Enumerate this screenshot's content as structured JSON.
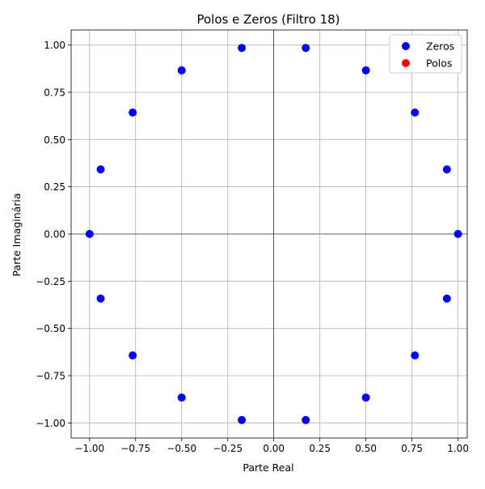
{
  "chart_data": {
    "type": "scatter",
    "title": "Polos e Zeros (Filtro 18)",
    "xlabel": "Parte Real",
    "ylabel": "Parte Imaginária",
    "xlim": [
      -1.1,
      1.05
    ],
    "ylim": [
      -1.08,
      1.08
    ],
    "xticks": [
      {
        "value": -1.0,
        "label": "−1.00"
      },
      {
        "value": -0.75,
        "label": "−0.75"
      },
      {
        "value": -0.5,
        "label": "−0.50"
      },
      {
        "value": -0.25,
        "label": "−0.25"
      },
      {
        "value": 0.0,
        "label": "0.00"
      },
      {
        "value": 0.25,
        "label": "0.25"
      },
      {
        "value": 0.5,
        "label": "0.50"
      },
      {
        "value": 0.75,
        "label": "0.75"
      },
      {
        "value": 1.0,
        "label": "1.00"
      }
    ],
    "yticks": [
      {
        "value": -1.0,
        "label": "−1.00"
      },
      {
        "value": -0.75,
        "label": "−0.75"
      },
      {
        "value": -0.5,
        "label": "−0.50"
      },
      {
        "value": -0.25,
        "label": "−0.25"
      },
      {
        "value": 0.0,
        "label": "0.00"
      },
      {
        "value": 0.25,
        "label": "0.25"
      },
      {
        "value": 0.5,
        "label": "0.50"
      },
      {
        "value": 0.75,
        "label": "0.75"
      },
      {
        "value": 1.0,
        "label": "1.00"
      }
    ],
    "grid": true,
    "reference_lines": {
      "x": 0,
      "y": 0,
      "color": "#000000"
    },
    "legend_position": "top-right",
    "series": [
      {
        "name": "Zeros",
        "color": "#0000ff",
        "points": [
          {
            "x": 1.0,
            "y": 0.0
          },
          {
            "x": 0.9397,
            "y": 0.342
          },
          {
            "x": 0.766,
            "y": 0.6428
          },
          {
            "x": 0.5,
            "y": 0.866
          },
          {
            "x": 0.1736,
            "y": 0.9848
          },
          {
            "x": -0.1736,
            "y": 0.9848
          },
          {
            "x": -0.5,
            "y": 0.866
          },
          {
            "x": -0.766,
            "y": 0.6428
          },
          {
            "x": -0.9397,
            "y": 0.342
          },
          {
            "x": -1.0,
            "y": 0.0
          },
          {
            "x": -0.9397,
            "y": -0.342
          },
          {
            "x": -0.766,
            "y": -0.6428
          },
          {
            "x": -0.5,
            "y": -0.866
          },
          {
            "x": -0.1736,
            "y": -0.9848
          },
          {
            "x": 0.1736,
            "y": -0.9848
          },
          {
            "x": 0.5,
            "y": -0.866
          },
          {
            "x": 0.766,
            "y": -0.6428
          },
          {
            "x": 0.9397,
            "y": -0.342
          }
        ]
      },
      {
        "name": "Polos",
        "color": "#ff0000",
        "points": []
      }
    ]
  }
}
